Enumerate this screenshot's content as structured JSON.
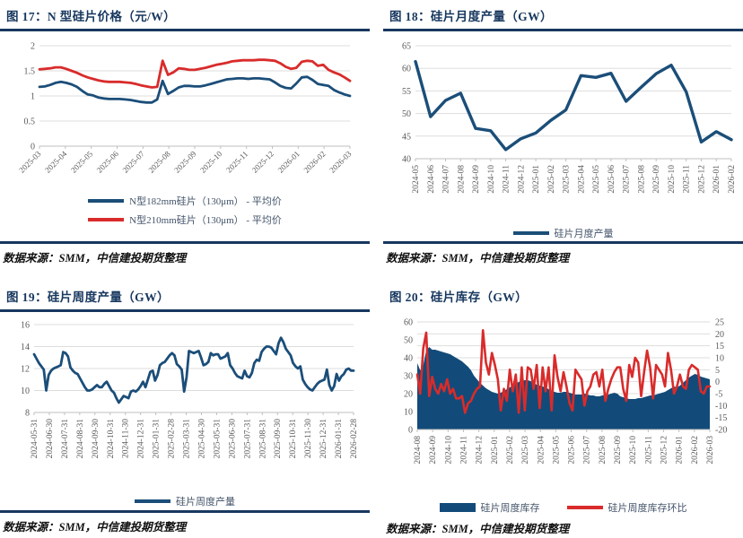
{
  "page": {
    "background": "#ffffff"
  },
  "colors": {
    "title_navy": "#17375E",
    "rule_navy": "#17375E",
    "blue_line": "#1B4E79",
    "red_line": "#D92B2B",
    "area_fill": "#124B79",
    "grid_gray": "#DDDDDD",
    "axis_gray": "#BFBFBF",
    "tick_text": "#595959"
  },
  "chart_data": [
    {
      "id": "fig17",
      "type": "line",
      "title": "图 17：N 型硅片价格（元/W）",
      "source": "数据来源：SMM，中信建投期货整理",
      "legend_position": "bottom",
      "grid": "horizontal",
      "ylim": [
        0,
        2
      ],
      "yticks": [
        0,
        0.5,
        1,
        1.5,
        2
      ],
      "x_labels": [
        "2025-03",
        "2025-04",
        "2025-05",
        "2025-06",
        "2025-07",
        "2025-08",
        "2025-09",
        "2025-10",
        "2025-11",
        "2025-12",
        "2026-01",
        "2026-02",
        "2026-03"
      ],
      "series": [
        {
          "name": "N型182mm硅片（130μm） - 平均价",
          "type": "line",
          "color": "#1B4E79",
          "values": [
            1.18,
            1.19,
            1.22,
            1.26,
            1.28,
            1.26,
            1.23,
            1.18,
            1.1,
            1.03,
            1.01,
            0.97,
            0.95,
            0.94,
            0.94,
            0.94,
            0.93,
            0.92,
            0.9,
            0.88,
            0.87,
            0.87,
            0.93,
            1.3,
            1.04,
            1.1,
            1.17,
            1.2,
            1.2,
            1.19,
            1.19,
            1.21,
            1.24,
            1.27,
            1.3,
            1.33,
            1.34,
            1.35,
            1.35,
            1.34,
            1.35,
            1.35,
            1.34,
            1.33,
            1.27,
            1.2,
            1.16,
            1.15,
            1.25,
            1.37,
            1.38,
            1.32,
            1.24,
            1.22,
            1.2,
            1.12,
            1.07,
            1.03,
            1.0
          ]
        },
        {
          "name": "N型210mm硅片（130μm） - 平均价",
          "type": "line",
          "color": "#D92B2B",
          "values": [
            1.53,
            1.54,
            1.55,
            1.57,
            1.57,
            1.54,
            1.5,
            1.46,
            1.41,
            1.37,
            1.34,
            1.31,
            1.29,
            1.28,
            1.28,
            1.28,
            1.27,
            1.26,
            1.24,
            1.21,
            1.19,
            1.17,
            1.18,
            1.7,
            1.42,
            1.47,
            1.55,
            1.54,
            1.52,
            1.52,
            1.54,
            1.56,
            1.59,
            1.62,
            1.64,
            1.66,
            1.69,
            1.7,
            1.71,
            1.71,
            1.71,
            1.72,
            1.72,
            1.71,
            1.7,
            1.65,
            1.58,
            1.54,
            1.56,
            1.68,
            1.7,
            1.69,
            1.6,
            1.62,
            1.52,
            1.47,
            1.43,
            1.37,
            1.3
          ]
        }
      ]
    },
    {
      "id": "fig18",
      "type": "line",
      "title": "图 18：硅片月度产量（GW）",
      "source": "数据来源：SMM，中信建投期货整理",
      "legend_position": "bottom",
      "grid": "horizontal",
      "ylim": [
        40,
        65
      ],
      "yticks": [
        40,
        45,
        50,
        55,
        60,
        65
      ],
      "x_labels": [
        "2024-05",
        "2024-06",
        "2024-07",
        "2024-08",
        "2024-09",
        "2024-10",
        "2024-11",
        "2024-12",
        "2025-01",
        "2025-02",
        "2025-03",
        "2025-04",
        "2025-05",
        "2025-06",
        "2025-07",
        "2025-08",
        "2025-09",
        "2025-10",
        "2025-11",
        "2025-12",
        "2026-01",
        "2026-02"
      ],
      "series": [
        {
          "name": "硅片月度产量",
          "type": "line",
          "color": "#1B4E79",
          "values": [
            61.5,
            49.3,
            52.9,
            54.5,
            46.7,
            46.2,
            42.0,
            44.4,
            45.7,
            48.5,
            50.8,
            58.4,
            58.0,
            58.9,
            52.7,
            55.8,
            58.8,
            60.7,
            54.8,
            43.7,
            46.0,
            44.2
          ]
        }
      ]
    },
    {
      "id": "fig19",
      "type": "line",
      "title": "图 19：硅片周度产量（GW）",
      "source": "数据来源：SMM，中信建投期货整理",
      "legend_position": "bottom",
      "grid": "horizontal",
      "ylim": [
        8,
        16
      ],
      "yticks": [
        8,
        10,
        12,
        14,
        16
      ],
      "x_labels": [
        "2024-05-31",
        "2024-06-30",
        "2024-07-31",
        "2024-08-31",
        "2024-09-30",
        "2024-10-31",
        "2024-11-30",
        "2024-12-31",
        "2025-01-31",
        "2025-02-28",
        "2025-03-31",
        "2025-04-30",
        "2025-05-31",
        "2025-06-30",
        "2025-07-31",
        "2025-08-31",
        "2025-09-30",
        "2025-10-31",
        "2025-11-30",
        "2025-12-31",
        "2026-01-31",
        "2026-02-28"
      ],
      "series": [
        {
          "name": "硅片周度产量",
          "type": "line",
          "color": "#1B4E79",
          "values": [
            13.3,
            12.9,
            12.5,
            12.2,
            11.9,
            10.0,
            11.4,
            11.8,
            12.0,
            12.1,
            12.2,
            12.3,
            13.5,
            13.4,
            13.1,
            12.1,
            11.8,
            11.6,
            11.5,
            11.1,
            10.7,
            10.3,
            10.0,
            10.0,
            10.1,
            10.3,
            10.5,
            10.3,
            10.3,
            10.6,
            10.8,
            10.4,
            10.0,
            9.8,
            9.3,
            8.9,
            9.2,
            9.5,
            9.4,
            9.3,
            9.9,
            10.0,
            9.9,
            10.1,
            10.4,
            10.8,
            10.3,
            11.0,
            11.7,
            11.8,
            10.9,
            11.4,
            12.3,
            12.5,
            12.6,
            12.9,
            13.2,
            13.4,
            13.2,
            12.4,
            12.2,
            11.9,
            9.9,
            11.2,
            13.6,
            13.5,
            13.4,
            13.5,
            13.6,
            13.0,
            12.3,
            12.4,
            12.6,
            13.4,
            13.2,
            13.3,
            13.3,
            12.9,
            13.0,
            13.1,
            13.4,
            12.3,
            12.0,
            11.6,
            11.3,
            11.2,
            11.1,
            11.8,
            11.3,
            11.2,
            11.6,
            12.5,
            12.8,
            12.7,
            13.5,
            13.8,
            14.0,
            14.0,
            13.9,
            13.6,
            13.3,
            14.3,
            14.8,
            14.4,
            13.8,
            13.5,
            13.2,
            12.5,
            12.2,
            12.0,
            12.2,
            11.0,
            10.6,
            10.3,
            10.1,
            10.0,
            10.3,
            10.6,
            10.8,
            10.9,
            11.0,
            11.9,
            10.5,
            10.0,
            10.4,
            11.5,
            10.9,
            11.3,
            11.5,
            11.9,
            12.0,
            11.8,
            11.8
          ]
        }
      ]
    },
    {
      "id": "fig20",
      "type": "combo",
      "title": "图 20：硅片库存（GW）",
      "source": "数据来源：SMM，中信建投期货整理",
      "legend_position": "bottom",
      "grid": "horizontal-right-axis",
      "ylim": [
        0,
        60
      ],
      "yticks": [
        0,
        10,
        20,
        30,
        40,
        50,
        60
      ],
      "y2lim": [
        -20,
        25
      ],
      "y2ticks": [
        -20,
        -15,
        -10,
        -5,
        0,
        5,
        10,
        15,
        20,
        25
      ],
      "x_labels": [
        "2024-08",
        "2024-09",
        "2024-10",
        "2024-11",
        "2024-12",
        "2025-01",
        "2025-02",
        "2025-03",
        "2025-04",
        "2025-05",
        "2025-06",
        "2025-07",
        "2025-08",
        "2025-09",
        "2025-10",
        "2025-11",
        "2025-12",
        "2026-01",
        "2026-02",
        "2026-03"
      ],
      "series": [
        {
          "name": "硅片周度库存",
          "type": "area",
          "axis": "left",
          "color": "#124B79",
          "values": [
            37,
            33,
            36,
            44,
            46,
            44.5,
            44.5,
            44,
            43.5,
            43,
            42.5,
            42,
            41,
            40,
            39,
            38,
            36.5,
            35,
            33,
            30,
            28,
            26,
            24.5,
            23,
            22,
            21,
            20.5,
            20,
            20.5,
            21.5,
            22.5,
            23.5,
            24.5,
            25.5,
            26.5,
            27,
            27.5,
            27.5,
            27,
            26,
            25,
            24.5,
            24,
            23.5,
            22.5,
            21.5,
            21,
            20.5,
            20.5,
            21,
            21,
            20.5,
            20,
            19.5,
            19.5,
            19.5,
            20,
            19.5,
            19,
            19,
            18.5,
            18.5,
            19,
            19.5,
            19.5,
            20,
            20.5,
            20,
            18.5,
            18,
            17.5,
            17,
            17,
            17,
            17.5,
            17.5,
            18,
            18.5,
            19,
            19,
            19.5,
            20,
            20.5,
            21,
            22,
            23,
            24,
            23.5,
            24.5,
            26,
            27.5,
            29,
            30,
            31,
            30.5,
            29.5,
            29,
            28.5,
            28
          ]
        },
        {
          "name": "硅片周度库存环比",
          "type": "line",
          "axis": "right",
          "color": "#D92B2B",
          "values": [
            3,
            -5,
            14,
            20.5,
            -6,
            2,
            -3,
            -5,
            -1,
            -4,
            1,
            -5,
            -3,
            -7,
            -7,
            -6,
            -13,
            -9,
            -8,
            -5,
            -3,
            -2,
            21.5,
            8,
            3,
            12,
            7,
            1,
            -12,
            -3,
            -8,
            5,
            -4,
            3,
            -13,
            6,
            -12,
            6,
            5,
            -3,
            7,
            -11,
            6,
            -4,
            6,
            -12,
            11,
            2,
            -4,
            4,
            -2,
            -9,
            -12,
            5,
            3,
            1,
            -10,
            -4,
            -2,
            3,
            4,
            -2,
            5,
            -8,
            -3,
            1,
            4,
            6,
            6,
            -3,
            -8,
            7,
            2,
            10,
            8,
            -6,
            4,
            13,
            6,
            -7,
            7,
            5,
            3,
            -2,
            12,
            5,
            -5,
            -2,
            3,
            -2,
            -3,
            5,
            7,
            6,
            5,
            -4,
            -5,
            -2,
            -2
          ]
        }
      ]
    }
  ]
}
